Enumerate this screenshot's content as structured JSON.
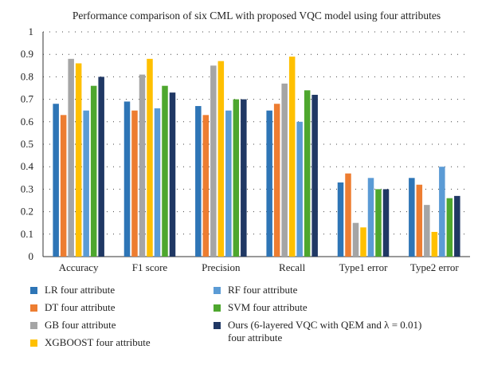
{
  "chart_data": {
    "type": "bar",
    "title": "Performance comparison of six CML with proposed VQC model using four attributes",
    "xlabel": "",
    "ylabel": "",
    "ylim": [
      0,
      1
    ],
    "yticks": [
      "0",
      "0.1",
      "0.2",
      "0.3",
      "0.4",
      "0.5",
      "0.6",
      "0.7",
      "0.8",
      "0.9",
      "1"
    ],
    "grid": "horizontal-dotted",
    "legend_position": "bottom",
    "categories": [
      "Accuracy",
      "F1 score",
      "Precision",
      "Recall",
      "Type1 error",
      "Type2 error"
    ],
    "series": [
      {
        "name": "LR four attribute",
        "color": "#2e75b6",
        "values": [
          0.68,
          0.69,
          0.67,
          0.65,
          0.33,
          0.35
        ]
      },
      {
        "name": "DT four attribute",
        "color": "#ed7d31",
        "values": [
          0.63,
          0.65,
          0.63,
          0.68,
          0.37,
          0.32
        ]
      },
      {
        "name": "GB four attribute",
        "color": "#a5a5a5",
        "values": [
          0.88,
          0.81,
          0.85,
          0.77,
          0.15,
          0.23
        ]
      },
      {
        "name": "XGBOOST four attribute",
        "color": "#ffc000",
        "values": [
          0.86,
          0.88,
          0.87,
          0.89,
          0.13,
          0.11
        ]
      },
      {
        "name": "RF four attribute",
        "color": "#5b9bd5",
        "values": [
          0.65,
          0.66,
          0.65,
          0.6,
          0.35,
          0.4
        ]
      },
      {
        "name": "SVM four attribute",
        "color": "#4ea72e",
        "values": [
          0.76,
          0.76,
          0.7,
          0.74,
          0.3,
          0.26
        ]
      },
      {
        "name": "Ours (6-layered VQC with QEM and λ = 0.01)\nfour attribute",
        "color": "#203864",
        "values": [
          0.8,
          0.73,
          0.7,
          0.72,
          0.3,
          0.27
        ]
      }
    ]
  }
}
